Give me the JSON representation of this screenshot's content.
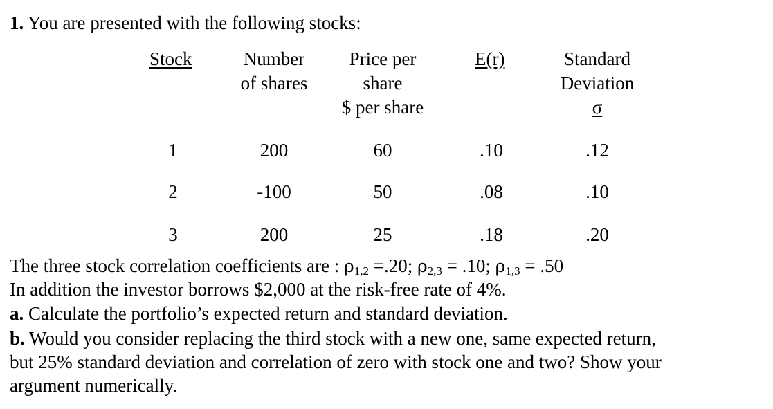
{
  "question": {
    "number": "1.",
    "intro": "You are presented with the following stocks:"
  },
  "table": {
    "headers": {
      "stock": "Stock",
      "shares_line1": "Number",
      "shares_line2": "of shares",
      "price_line1": "Price per",
      "price_line2": "share",
      "price_line3": "$ per share",
      "er": "E(r)",
      "sd_line1": "Standard",
      "sd_line2": "Deviation",
      "sd_symbol": "σ"
    },
    "rows": [
      {
        "stock": "1",
        "shares": "200",
        "price": "60",
        "er": ".10",
        "sd": ".12"
      },
      {
        "stock": "2",
        "shares": "-100",
        "price": "50",
        "er": ".08",
        "sd": ".10"
      },
      {
        "stock": "3",
        "shares": "200",
        "price": "25",
        "er": ".18",
        "sd": ".20"
      }
    ]
  },
  "correlation": {
    "prefix": "The three stock correlation coefficients are :",
    "rho_symbol": "ρ",
    "r12_sub": "1,2",
    "r12_val": "=.20;",
    "r23_sub": "2,3",
    "r23_val": "= .10;",
    "r13_sub": "1,3",
    "r13_val": "= .50"
  },
  "borrow_text": "In addition the investor borrows $2,000 at the risk-free rate of 4%.",
  "part_a": {
    "label": "a.",
    "text": "Calculate the portfolio’s expected return and standard deviation."
  },
  "part_b": {
    "label": "b.",
    "text_line1": "Would you consider replacing the third stock with a new one, same expected return,",
    "text_line2": "but 25% standard deviation and correlation of zero with stock one and two? Show your",
    "text_line3": "argument numerically."
  }
}
